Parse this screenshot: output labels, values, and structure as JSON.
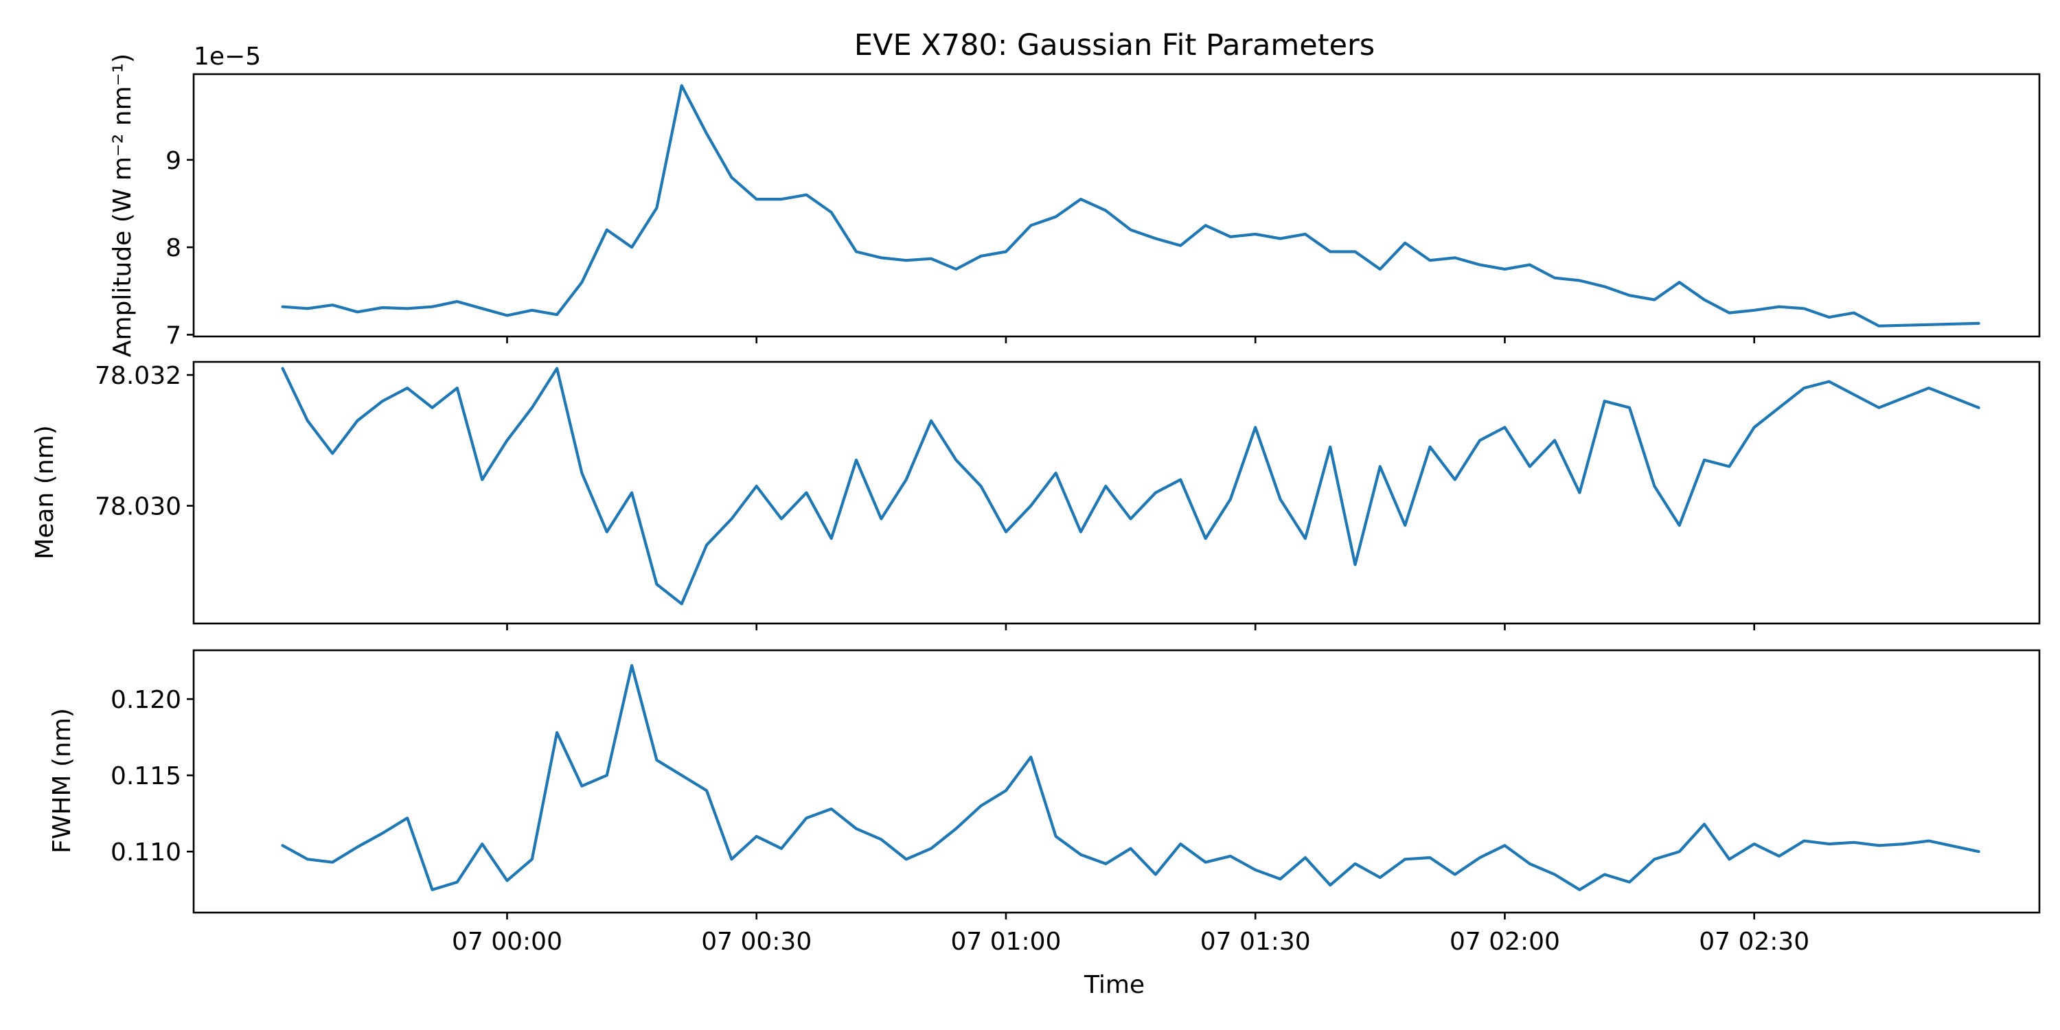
{
  "title": "EVE X780: Gaussian Fit Parameters",
  "xlabel": "Time",
  "x_tick_labels": [
    "07 00:00",
    "07 00:30",
    "07 01:00",
    "07 01:30",
    "07 02:00",
    "07 02:30"
  ],
  "colors": {
    "series": "#1f77b4"
  },
  "chart_data": [
    {
      "type": "line",
      "ylabel": "Amplitude (W m⁻² nm⁻¹)",
      "offset_text": "1e−5",
      "y_tick_labels": [
        "7",
        "8",
        "9"
      ],
      "y_ticks": [
        7,
        8,
        9
      ],
      "ylim": [
        6.98,
        9.98
      ],
      "x": [
        -27,
        -24,
        -21,
        -18,
        -15,
        -12,
        -9,
        -6,
        -3,
        0,
        3,
        6,
        9,
        12,
        15,
        18,
        21,
        24,
        27,
        30,
        33,
        36,
        39,
        42,
        45,
        48,
        51,
        54,
        57,
        60,
        63,
        66,
        69,
        72,
        75,
        78,
        81,
        84,
        87,
        90,
        93,
        96,
        99,
        102,
        105,
        108,
        111,
        114,
        117,
        120,
        123,
        126,
        129,
        132,
        135,
        138,
        141,
        144,
        147,
        150,
        153,
        156,
        159,
        162,
        165,
        177
      ],
      "values": [
        7.32,
        7.3,
        7.34,
        7.26,
        7.31,
        7.3,
        7.32,
        7.38,
        7.3,
        7.22,
        7.28,
        7.23,
        7.6,
        8.2,
        8.0,
        8.45,
        9.85,
        9.3,
        8.8,
        8.55,
        8.55,
        8.6,
        8.4,
        7.95,
        7.88,
        7.85,
        7.87,
        7.75,
        7.9,
        7.95,
        8.25,
        8.35,
        8.55,
        8.42,
        8.2,
        8.1,
        8.02,
        8.25,
        8.12,
        8.15,
        8.1,
        8.15,
        7.95,
        7.95,
        7.75,
        8.05,
        7.85,
        7.88,
        7.8,
        7.75,
        7.8,
        7.65,
        7.62,
        7.55,
        7.45,
        7.4,
        7.6,
        7.4,
        7.25,
        7.28,
        7.32,
        7.3,
        7.2,
        7.25,
        7.1,
        7.13
      ]
    },
    {
      "type": "line",
      "ylabel": "Mean (nm)",
      "y_tick_labels": [
        "78.030",
        "78.032"
      ],
      "y_ticks": [
        78.03,
        78.032
      ],
      "ylim": [
        78.0282,
        78.0322
      ],
      "x": [
        -27,
        -24,
        -21,
        -18,
        -15,
        -12,
        -9,
        -6,
        -3,
        0,
        3,
        6,
        9,
        12,
        15,
        18,
        21,
        24,
        27,
        30,
        33,
        36,
        39,
        42,
        45,
        48,
        51,
        54,
        57,
        60,
        63,
        66,
        69,
        72,
        75,
        78,
        81,
        84,
        87,
        90,
        93,
        96,
        99,
        102,
        105,
        108,
        111,
        114,
        117,
        120,
        123,
        126,
        129,
        132,
        135,
        138,
        141,
        144,
        147,
        150,
        153,
        156,
        159,
        165,
        171,
        177
      ],
      "values": [
        78.0321,
        78.0313,
        78.0308,
        78.0313,
        78.0316,
        78.0318,
        78.0315,
        78.0318,
        78.0304,
        78.031,
        78.0315,
        78.0321,
        78.0305,
        78.0296,
        78.0302,
        78.0288,
        78.0285,
        78.0294,
        78.0298,
        78.0303,
        78.0298,
        78.0302,
        78.0295,
        78.0307,
        78.0298,
        78.0304,
        78.0313,
        78.0307,
        78.0303,
        78.0296,
        78.03,
        78.0305,
        78.0296,
        78.0303,
        78.0298,
        78.0302,
        78.0304,
        78.0295,
        78.0301,
        78.0312,
        78.0301,
        78.0295,
        78.0309,
        78.0291,
        78.0306,
        78.0297,
        78.0309,
        78.0304,
        78.031,
        78.0312,
        78.0306,
        78.031,
        78.0302,
        78.0316,
        78.0315,
        78.0303,
        78.0297,
        78.0307,
        78.0306,
        78.0312,
        78.0315,
        78.0318,
        78.0319,
        78.0315,
        78.0318,
        78.0315
      ]
    },
    {
      "type": "line",
      "ylabel": "FWHM (nm)",
      "y_tick_labels": [
        "0.110",
        "0.115",
        "0.120"
      ],
      "y_ticks": [
        0.11,
        0.115,
        0.12
      ],
      "ylim": [
        0.106,
        0.1232
      ],
      "x": [
        -27,
        -24,
        -21,
        -18,
        -15,
        -12,
        -9,
        -6,
        -3,
        0,
        3,
        6,
        9,
        12,
        15,
        18,
        21,
        24,
        27,
        30,
        33,
        36,
        39,
        42,
        45,
        48,
        51,
        54,
        57,
        60,
        63,
        66,
        69,
        72,
        75,
        78,
        81,
        84,
        87,
        90,
        93,
        96,
        99,
        102,
        105,
        108,
        111,
        114,
        117,
        120,
        123,
        126,
        129,
        132,
        135,
        138,
        141,
        144,
        147,
        150,
        153,
        156,
        159,
        162,
        165,
        168,
        171,
        177
      ],
      "values": [
        0.1104,
        0.1095,
        0.1093,
        0.1103,
        0.1112,
        0.1122,
        0.1075,
        0.108,
        0.1105,
        0.1081,
        0.1095,
        0.1178,
        0.1143,
        0.115,
        0.1222,
        0.116,
        0.115,
        0.114,
        0.1095,
        0.111,
        0.1102,
        0.1122,
        0.1128,
        0.1115,
        0.1108,
        0.1095,
        0.1102,
        0.1115,
        0.113,
        0.114,
        0.1162,
        0.111,
        0.1098,
        0.1092,
        0.1102,
        0.1085,
        0.1105,
        0.1093,
        0.1097,
        0.1088,
        0.1082,
        0.1096,
        0.1078,
        0.1092,
        0.1083,
        0.1095,
        0.1096,
        0.1085,
        0.1096,
        0.1104,
        0.1092,
        0.1085,
        0.1075,
        0.1085,
        0.108,
        0.1095,
        0.11,
        0.1118,
        0.1095,
        0.1105,
        0.1097,
        0.1107,
        0.1105,
        0.1106,
        0.1104,
        0.1105,
        0.1107,
        0.11
      ]
    }
  ]
}
